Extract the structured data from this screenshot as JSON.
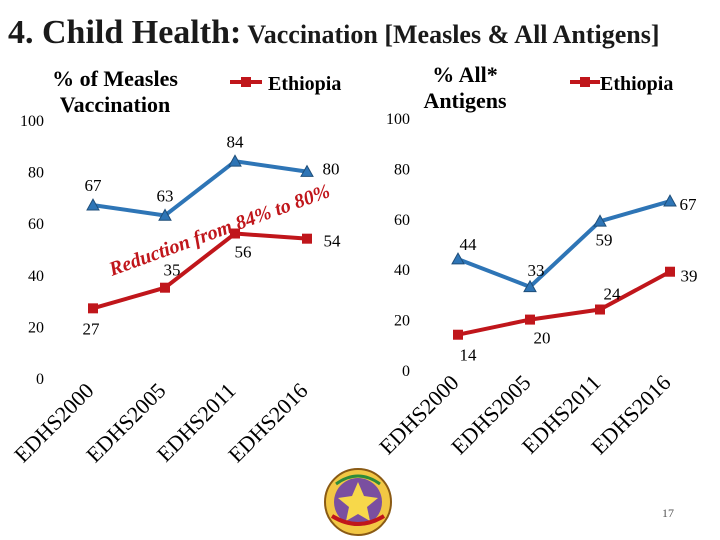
{
  "slide": {
    "title_main": "4. Child Health:",
    "title_sub": " Vaccination [Measles & All Antigens]",
    "page_number": "17"
  },
  "colors": {
    "blue": "#2e75b6",
    "red": "#c0161b"
  },
  "chart_data": [
    {
      "type": "line",
      "title": "% of Measles Vaccination",
      "title_lines": [
        "% of Measles",
        "Vaccination"
      ],
      "categories": [
        "EDHS2000",
        "EDHS2005",
        "EDHS2011",
        "EDHS2016"
      ],
      "series": [
        {
          "name": "",
          "color": "#2e75b6",
          "values": [
            67,
            63,
            84,
            80
          ],
          "labels": [
            "67",
            "63",
            "84",
            "80"
          ]
        },
        {
          "name": "Ethiopia",
          "color": "#c0161b",
          "values": [
            27,
            35,
            56,
            54
          ],
          "labels": [
            "27",
            "35",
            "56",
            "54"
          ]
        }
      ],
      "ylim": [
        0,
        100
      ],
      "yticks": [
        "0",
        "20",
        "40",
        "60",
        "80",
        "100"
      ],
      "legend": {
        "position": "top-right",
        "entries": [
          "Ethiopia"
        ]
      },
      "annotation": "Reduction from 84% to 80%",
      "grid": false
    },
    {
      "type": "line",
      "title": "% All* Antigens",
      "title_lines": [
        "% All*",
        "Antigens"
      ],
      "categories": [
        "EDHS2000",
        "EDHS2005",
        "EDHS2011",
        "EDHS2016"
      ],
      "series": [
        {
          "name": "",
          "color": "#2e75b6",
          "values": [
            44,
            33,
            59,
            67
          ],
          "labels": [
            "44",
            "33",
            "59",
            "67"
          ]
        },
        {
          "name": "Ethiopia",
          "color": "#c0161b",
          "values": [
            14,
            20,
            24,
            39
          ],
          "labels": [
            "14",
            "20",
            "24",
            "39"
          ]
        }
      ],
      "ylim": [
        0,
        100
      ],
      "yticks": [
        "0",
        "20",
        "40",
        "60",
        "80",
        "100"
      ],
      "legend": {
        "position": "top-right",
        "entries": [
          "Ethiopia"
        ]
      },
      "grid": false
    }
  ]
}
